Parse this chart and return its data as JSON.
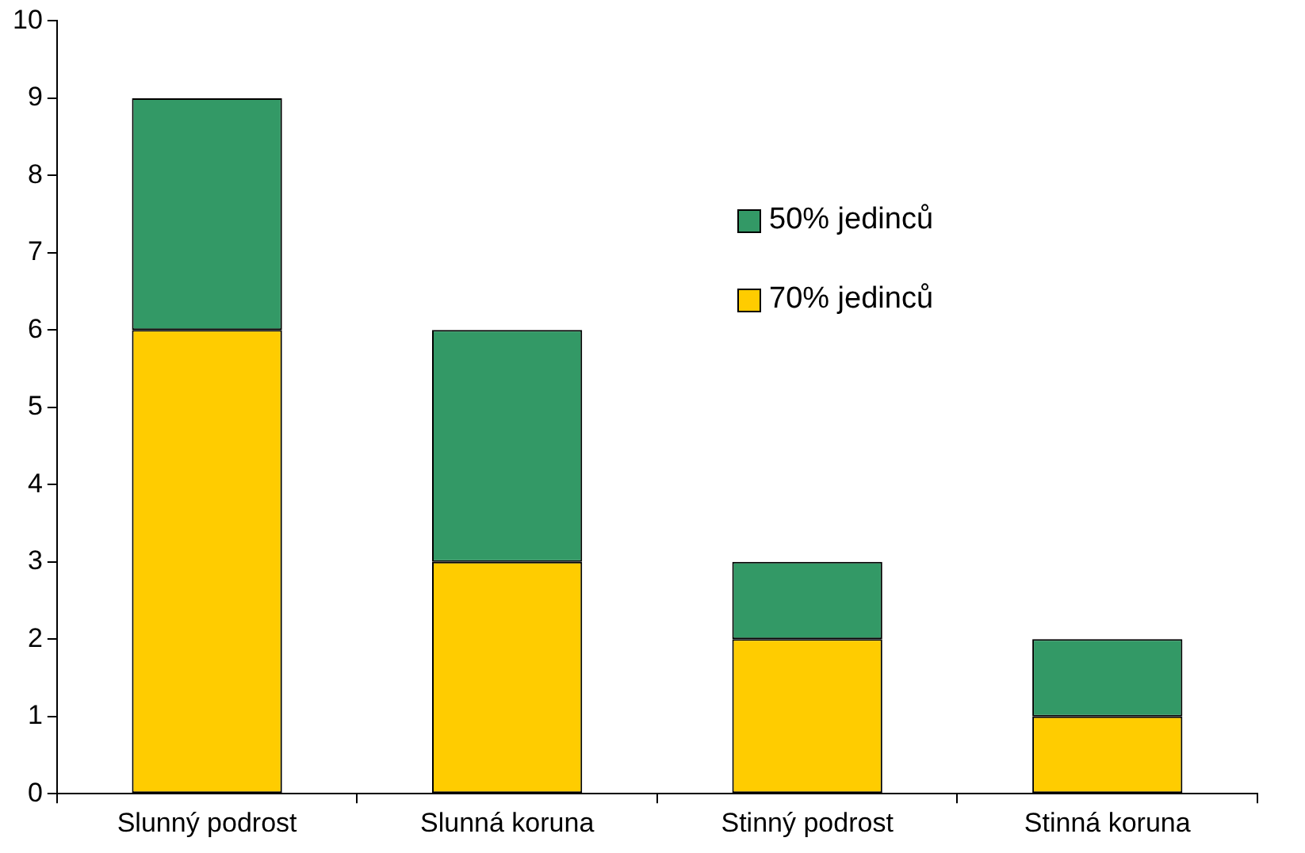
{
  "chart_data": {
    "type": "bar",
    "stacked": true,
    "categories": [
      "Slunný podrost",
      "Slunná koruna",
      "Stinný podrost",
      "Stinná koruna"
    ],
    "series": [
      {
        "name": "70% jedinců",
        "color": "#ffcc00",
        "values": [
          6,
          3,
          2,
          1
        ]
      },
      {
        "name": "50% jedinců",
        "color": "#339966",
        "values": [
          3,
          3,
          1,
          1
        ]
      }
    ],
    "ylim": [
      0,
      10
    ],
    "yticks": [
      0,
      1,
      2,
      3,
      4,
      5,
      6,
      7,
      8,
      9,
      10
    ],
    "grid": false,
    "legend": "top right"
  }
}
